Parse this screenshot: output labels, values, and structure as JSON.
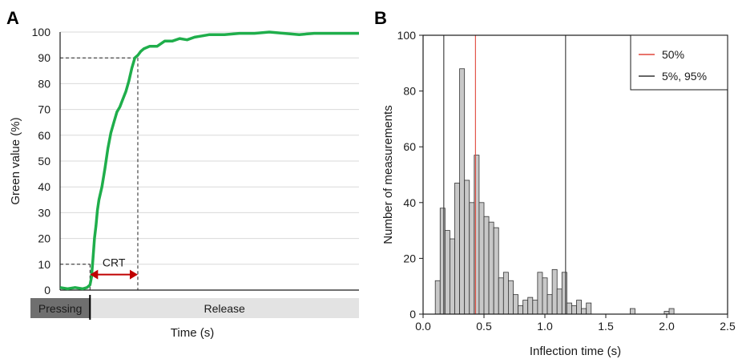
{
  "chart_data": [
    {
      "panel": "A",
      "type": "line",
      "xlabel": "Time (s)",
      "ylabel": "Green value (%)",
      "ylim": [
        0,
        100
      ],
      "yticks": [
        0,
        10,
        20,
        30,
        40,
        50,
        60,
        70,
        80,
        90,
        100
      ],
      "grid": "horizontal",
      "series": [
        {
          "color": "#1fae4b",
          "x": [
            0,
            0.05,
            0.1,
            0.15,
            0.18,
            0.2,
            0.21,
            0.22,
            0.23,
            0.24,
            0.25,
            0.26,
            0.28,
            0.3,
            0.32,
            0.34,
            0.36,
            0.38,
            0.4,
            0.42,
            0.44,
            0.46,
            0.48,
            0.5,
            0.52,
            0.54,
            0.56,
            0.6,
            0.65,
            0.7,
            0.75,
            0.8,
            0.85,
            0.9,
            0.95,
            1.0,
            1.1,
            1.2,
            1.3,
            1.4,
            1.5,
            1.6,
            1.7,
            1.8,
            1.9,
            2.0
          ],
          "y": [
            1,
            0.5,
            1,
            0.5,
            1,
            2,
            5,
            12,
            20,
            25,
            31,
            35,
            40,
            47,
            55,
            61,
            65,
            69,
            71,
            74,
            77,
            81,
            86,
            90,
            91,
            92.5,
            93.5,
            94.5,
            94.5,
            96.5,
            96.5,
            97.5,
            97,
            98,
            98.5,
            99,
            99,
            99.5,
            99.5,
            100,
            99.5,
            99,
            99.5,
            99.5,
            99.5,
            99.5
          ]
        }
      ],
      "annotations": [
        {
          "text": "CRT",
          "color": "#c00000",
          "from_x": 0.2,
          "to_x": 0.52,
          "y": 6
        },
        {
          "type": "dashed-guide",
          "y": 10,
          "x": 0.2
        },
        {
          "type": "dashed-guide",
          "y": 90,
          "x": 0.52
        }
      ],
      "phase_bar": [
        {
          "label": "Pressing",
          "from": 0,
          "to": 0.2,
          "color": "#6f6f6f"
        },
        {
          "label": "Release",
          "from": 0.2,
          "to": 2.0,
          "color": "#e3e3e3"
        }
      ]
    },
    {
      "panel": "B",
      "type": "bar",
      "xlabel": "Inflection time (s)",
      "ylabel": "Number of measurements",
      "xlim": [
        0.0,
        2.5
      ],
      "ylim": [
        0,
        100
      ],
      "xticks": [
        "0.0",
        "0.5",
        "1.0",
        "1.5",
        "2.0",
        "2.5"
      ],
      "yticks": [
        0,
        20,
        40,
        60,
        80,
        100
      ],
      "bin_width": 0.04,
      "bin_start": 0.1,
      "values": [
        12,
        38,
        30,
        27,
        47,
        88,
        48,
        40,
        57,
        40,
        35,
        33,
        31,
        13,
        15,
        12,
        7,
        3,
        5,
        6,
        5,
        15,
        13,
        7,
        16,
        9,
        15,
        4,
        3,
        5,
        2,
        4,
        0,
        0,
        0,
        0,
        0,
        0,
        0,
        0,
        2,
        0,
        0,
        0,
        0,
        0,
        0,
        1,
        2
      ],
      "bar_color": "#c8c8c8",
      "vlines": [
        {
          "x": 0.43,
          "color": "#e0463b"
        },
        {
          "x": 0.17,
          "color": "#333333"
        },
        {
          "x": 1.17,
          "color": "#333333"
        }
      ],
      "legend": {
        "position": "top-right",
        "entries": [
          {
            "label": "50%",
            "color": "#e0463b"
          },
          {
            "label": "5%, 95%",
            "color": "#333333"
          }
        ]
      }
    }
  ]
}
